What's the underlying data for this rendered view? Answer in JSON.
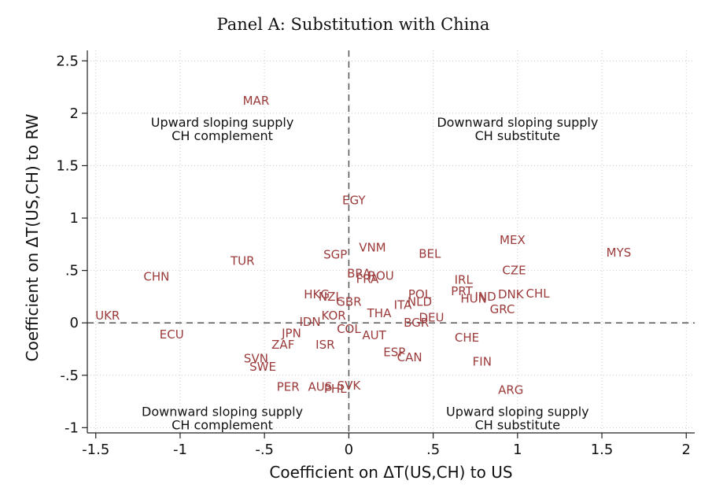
{
  "chart_data": {
    "type": "scatter",
    "title": "Panel A: Substitution with China",
    "xlabel": "Coefficient on ΔT(US,CH) to US",
    "ylabel": "Coefficient on ΔT(US,CH) to RW",
    "xlim": [
      -1.55,
      2.05
    ],
    "ylim": [
      -1.05,
      2.6
    ],
    "xticks": [
      {
        "value": -1.5,
        "label": "-1.5"
      },
      {
        "value": -1,
        "label": "-1"
      },
      {
        "value": -0.5,
        "label": "-.5"
      },
      {
        "value": 0,
        "label": "0"
      },
      {
        "value": 0.5,
        "label": ".5"
      },
      {
        "value": 1,
        "label": "1"
      },
      {
        "value": 1.5,
        "label": "1.5"
      },
      {
        "value": 2,
        "label": "2"
      }
    ],
    "yticks": [
      {
        "value": -1,
        "label": "-1"
      },
      {
        "value": -0.5,
        "label": "-.5"
      },
      {
        "value": 0,
        "label": "0"
      },
      {
        "value": 0.5,
        "label": ".5"
      },
      {
        "value": 1,
        "label": "1"
      },
      {
        "value": 1.5,
        "label": "1.5"
      },
      {
        "value": 2,
        "label": "2"
      },
      {
        "value": 2.5,
        "label": "2.5"
      }
    ],
    "grid": true,
    "reference_lines": {
      "x": 0,
      "y": 0
    },
    "annotations": [
      {
        "lines": [
          "Upward sloping supply",
          "CH complement"
        ],
        "x": -0.75,
        "y": 1.87
      },
      {
        "lines": [
          "Downward sloping supply",
          "CH substitute"
        ],
        "x": 1.0,
        "y": 1.87
      },
      {
        "lines": [
          "Downward sloping supply",
          "CH complement"
        ],
        "x": -0.75,
        "y": -0.89
      },
      {
        "lines": [
          "Upward sloping supply",
          "CH substitute"
        ],
        "x": 1.0,
        "y": -0.89
      }
    ],
    "points": [
      {
        "label": "MAR",
        "x": -0.55,
        "y": 2.12
      },
      {
        "label": "EGY",
        "x": 0.03,
        "y": 1.17
      },
      {
        "label": "MEX",
        "x": 0.97,
        "y": 0.79
      },
      {
        "label": "MYS",
        "x": 1.6,
        "y": 0.67
      },
      {
        "label": "VNM",
        "x": 0.14,
        "y": 0.72
      },
      {
        "label": "BEL",
        "x": 0.48,
        "y": 0.66
      },
      {
        "label": "SGP",
        "x": -0.08,
        "y": 0.65
      },
      {
        "label": "TUR",
        "x": -0.63,
        "y": 0.59
      },
      {
        "label": "CZE",
        "x": 0.98,
        "y": 0.5
      },
      {
        "label": "CHN",
        "x": -1.14,
        "y": 0.44
      },
      {
        "label": "BRA",
        "x": 0.06,
        "y": 0.47
      },
      {
        "label": "ROU",
        "x": 0.19,
        "y": 0.45
      },
      {
        "label": "FRA",
        "x": 0.11,
        "y": 0.42
      },
      {
        "label": "IRL",
        "x": 0.68,
        "y": 0.41
      },
      {
        "label": "PRT",
        "x": 0.67,
        "y": 0.3
      },
      {
        "label": "POL",
        "x": 0.42,
        "y": 0.27
      },
      {
        "label": "HKG",
        "x": -0.19,
        "y": 0.27
      },
      {
        "label": "NZL",
        "x": -0.11,
        "y": 0.25
      },
      {
        "label": "IND",
        "x": 0.81,
        "y": 0.25
      },
      {
        "label": "DNK",
        "x": 0.96,
        "y": 0.27
      },
      {
        "label": "CHL",
        "x": 1.12,
        "y": 0.28
      },
      {
        "label": "HUN",
        "x": 0.74,
        "y": 0.23
      },
      {
        "label": "GBR",
        "x": 0.0,
        "y": 0.2
      },
      {
        "label": "NLD",
        "x": 0.42,
        "y": 0.2
      },
      {
        "label": "ITA",
        "x": 0.32,
        "y": 0.17
      },
      {
        "label": "GRC",
        "x": 0.91,
        "y": 0.13
      },
      {
        "label": "THA",
        "x": 0.18,
        "y": 0.09
      },
      {
        "label": "KOR",
        "x": -0.09,
        "y": 0.07
      },
      {
        "label": "DEU",
        "x": 0.49,
        "y": 0.05
      },
      {
        "label": "UKR",
        "x": -1.43,
        "y": 0.07
      },
      {
        "label": "IDN",
        "x": -0.23,
        "y": 0.01
      },
      {
        "label": "BGR",
        "x": 0.4,
        "y": 0.0
      },
      {
        "label": "COL",
        "x": 0.0,
        "y": -0.06
      },
      {
        "label": "ECU",
        "x": -1.05,
        "y": -0.11
      },
      {
        "label": "JPN",
        "x": -0.34,
        "y": -0.1
      },
      {
        "label": "AUT",
        "x": 0.15,
        "y": -0.12
      },
      {
        "label": "CHE",
        "x": 0.7,
        "y": -0.14
      },
      {
        "label": "ZAF",
        "x": -0.39,
        "y": -0.21
      },
      {
        "label": "ISR",
        "x": -0.14,
        "y": -0.21
      },
      {
        "label": "ESP",
        "x": 0.27,
        "y": -0.28
      },
      {
        "label": "CAN",
        "x": 0.36,
        "y": -0.33
      },
      {
        "label": "SVN",
        "x": -0.55,
        "y": -0.34
      },
      {
        "label": "FIN",
        "x": 0.79,
        "y": -0.37
      },
      {
        "label": "SWE",
        "x": -0.51,
        "y": -0.42
      },
      {
        "label": "SVK",
        "x": 0.0,
        "y": -0.6
      },
      {
        "label": "AUS",
        "x": -0.17,
        "y": -0.61
      },
      {
        "label": "PER",
        "x": -0.36,
        "y": -0.61
      },
      {
        "label": "PHL",
        "x": -0.08,
        "y": -0.63
      },
      {
        "label": "ARG",
        "x": 0.96,
        "y": -0.64
      }
    ]
  }
}
